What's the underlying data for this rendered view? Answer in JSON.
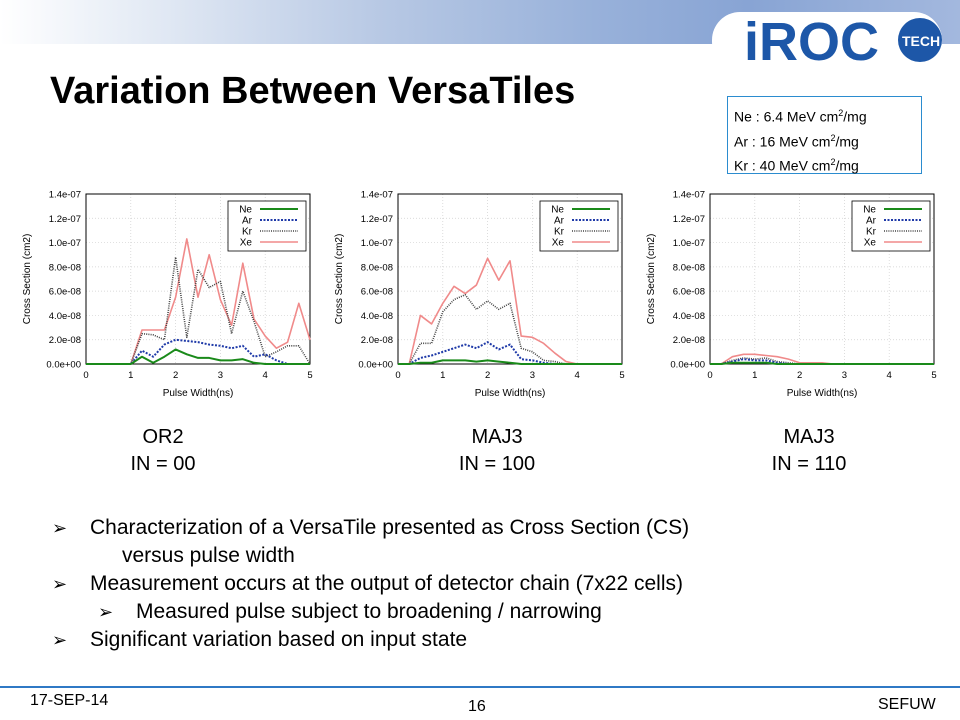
{
  "slide": {
    "title": "Variation Between VersaTiles",
    "logo_text": "iROC",
    "logo_subtext": "TECH",
    "page_number": "16",
    "date": "17-SEP-14",
    "footer_right": "SEFUW"
  },
  "ion_legend": {
    "lines": [
      {
        "text": "Ne : 6.4 MeV cm",
        "sup": "2",
        "tail": "/mg"
      },
      {
        "text": "Ar : 16 MeV cm",
        "sup": "2",
        "tail": "/mg"
      },
      {
        "text": "Kr : 40 MeV cm",
        "sup": "2",
        "tail": "/mg"
      }
    ]
  },
  "captions": [
    {
      "line1": "OR2",
      "line2": "IN = 00"
    },
    {
      "line1": "MAJ3",
      "line2": "IN = 100"
    },
    {
      "line1": "MAJ3",
      "line2": "IN = 110"
    }
  ],
  "bullets": [
    {
      "text": "Characterization of a VersaTile presented as Cross Section (CS)",
      "level": 1
    },
    {
      "text": "versus pulse width",
      "level": 0
    },
    {
      "text": "Measurement occurs at the output of detector chain (7x22 cells)",
      "level": 1
    },
    {
      "text": "Measured pulse subject to broadening / narrowing",
      "level": 2
    },
    {
      "text": "Significant variation based on input state",
      "level": 1
    }
  ],
  "colors": {
    "Ne": "#1a8a1a",
    "Ar": "#1f3aa8",
    "Kr": "#444444",
    "Xe": "#f08a8a",
    "accent": "#2f79c5"
  },
  "chart_data": [
    {
      "type": "line",
      "xlabel": "Pulse Width(ns)",
      "ylabel": "Cross Section (cm2)",
      "xlim": [
        0,
        5
      ],
      "ylim": [
        0,
        1.4e-07
      ],
      "xticks": [
        "0",
        "1",
        "2",
        "3",
        "4",
        "5"
      ],
      "yticks": [
        "0.0e+00",
        "2.0e-08",
        "4.0e-08",
        "6.0e-08",
        "8.0e-08",
        "1.0e-07",
        "1.2e-07",
        "1.4e-07"
      ],
      "grid": true,
      "legend_position": "top-right",
      "x": [
        0,
        0.25,
        0.5,
        0.75,
        1.0,
        1.25,
        1.5,
        1.75,
        2.0,
        2.25,
        2.5,
        2.75,
        3.0,
        3.25,
        3.5,
        3.75,
        4.0,
        4.25,
        4.5,
        4.75,
        5.0
      ],
      "series": [
        {
          "name": "Ne",
          "values": [
            0,
            0,
            0,
            0,
            0,
            6e-09,
            1e-09,
            6e-09,
            1.2e-08,
            8e-09,
            5e-09,
            5e-09,
            3e-09,
            3e-09,
            4e-09,
            1e-09,
            0,
            0,
            0,
            0,
            0
          ]
        },
        {
          "name": "Ar",
          "values": [
            0,
            0,
            0,
            0,
            0,
            1.1e-08,
            6e-09,
            1.6e-08,
            2e-08,
            1.9e-08,
            1.8e-08,
            1.6e-08,
            1.5e-08,
            1.3e-08,
            1.5e-08,
            6e-09,
            8e-09,
            3e-09,
            0,
            0,
            0
          ]
        },
        {
          "name": "Kr",
          "values": [
            0,
            0,
            0,
            0,
            0,
            2.5e-08,
            2.4e-08,
            2e-08,
            8.8e-08,
            2.2e-08,
            7.8e-08,
            6.3e-08,
            6.8e-08,
            2.5e-08,
            6e-08,
            3.5e-08,
            6e-09,
            1e-08,
            1.5e-08,
            1.5e-08,
            0
          ]
        },
        {
          "name": "Xe",
          "values": [
            0,
            0,
            0,
            0,
            0,
            2.8e-08,
            2.8e-08,
            2.8e-08,
            5.5e-08,
            1.03e-07,
            5.5e-08,
            9e-08,
            5.3e-08,
            3.2e-08,
            8.3e-08,
            3.7e-08,
            2.3e-08,
            1.3e-08,
            1.8e-08,
            5e-08,
            2e-08
          ]
        }
      ]
    },
    {
      "type": "line",
      "xlabel": "Pulse Width(ns)",
      "ylabel": "Cross Section (cm2)",
      "xlim": [
        0,
        5
      ],
      "ylim": [
        0,
        1.4e-07
      ],
      "xticks": [
        "0",
        "1",
        "2",
        "3",
        "4",
        "5"
      ],
      "yticks": [
        "0.0e+00",
        "2.0e-08",
        "4.0e-08",
        "6.0e-08",
        "8.0e-08",
        "1.0e-07",
        "1.2e-07",
        "1.4e-07"
      ],
      "grid": true,
      "legend_position": "top-right",
      "x": [
        0,
        0.25,
        0.5,
        0.75,
        1.0,
        1.25,
        1.5,
        1.75,
        2.0,
        2.25,
        2.5,
        2.75,
        3.0,
        3.25,
        3.5,
        3.75,
        4.0,
        4.25,
        4.5,
        4.75,
        5.0
      ],
      "series": [
        {
          "name": "Ne",
          "values": [
            0,
            0,
            1e-09,
            1e-09,
            3e-09,
            3e-09,
            3e-09,
            2e-09,
            3e-09,
            2e-09,
            1e-09,
            0,
            0,
            0,
            0,
            0,
            0,
            0,
            0,
            0,
            0
          ]
        },
        {
          "name": "Ar",
          "values": [
            0,
            0,
            5e-09,
            7e-09,
            1e-08,
            1.3e-08,
            1.6e-08,
            1.3e-08,
            1.8e-08,
            1.2e-08,
            1.6e-08,
            4e-09,
            3e-09,
            1e-09,
            0,
            0,
            0,
            0,
            0,
            0,
            0
          ]
        },
        {
          "name": "Kr",
          "values": [
            0,
            0,
            1.7e-08,
            1.7e-08,
            4.3e-08,
            5.3e-08,
            5.7e-08,
            4.5e-08,
            5.2e-08,
            4.5e-08,
            5e-08,
            1.3e-08,
            1e-08,
            3e-09,
            2e-09,
            0,
            0,
            0,
            0,
            0,
            0
          ]
        },
        {
          "name": "Xe",
          "values": [
            0,
            0,
            4e-08,
            3.3e-08,
            5e-08,
            6.4e-08,
            5.8e-08,
            6.5e-08,
            8.7e-08,
            6.9e-08,
            8.5e-08,
            2.3e-08,
            2.2e-08,
            1.7e-08,
            9e-09,
            2e-09,
            0,
            0,
            0,
            0,
            0
          ]
        }
      ]
    },
    {
      "type": "line",
      "xlabel": "Pulse Width(ns)",
      "ylabel": "Cross Section (cm2)",
      "xlim": [
        0,
        5
      ],
      "ylim": [
        0,
        1.4e-07
      ],
      "xticks": [
        "0",
        "1",
        "2",
        "3",
        "4",
        "5"
      ],
      "yticks": [
        "0.0e+00",
        "2.0e-08",
        "4.0e-08",
        "6.0e-08",
        "8.0e-08",
        "1.0e-07",
        "1.2e-07",
        "1.4e-07"
      ],
      "grid": true,
      "legend_position": "top-right",
      "x": [
        0,
        0.25,
        0.5,
        0.75,
        1.0,
        1.25,
        1.5,
        1.75,
        2.0,
        2.25,
        2.5,
        2.75,
        3.0,
        3.25,
        3.5,
        3.75,
        4.0,
        4.25,
        4.5,
        4.75,
        5.0
      ],
      "series": [
        {
          "name": "Ne",
          "values": [
            0,
            0,
            1e-09,
            1e-09,
            1e-09,
            1e-09,
            0,
            0,
            0,
            0,
            0,
            0,
            0,
            0,
            0,
            0,
            0,
            0,
            0,
            0,
            0
          ]
        },
        {
          "name": "Ar",
          "values": [
            0,
            0,
            2e-09,
            4e-09,
            3e-09,
            3e-09,
            1e-09,
            0,
            0,
            0,
            0,
            0,
            0,
            0,
            0,
            0,
            0,
            0,
            0,
            0,
            0
          ]
        },
        {
          "name": "Kr",
          "values": [
            0,
            0,
            3e-09,
            5e-09,
            4e-09,
            5e-09,
            2e-09,
            1e-09,
            0,
            0,
            0,
            0,
            0,
            0,
            0,
            0,
            0,
            0,
            0,
            0,
            0
          ]
        },
        {
          "name": "Xe",
          "values": [
            0,
            0,
            6e-09,
            8e-09,
            8e-09,
            7e-09,
            6e-09,
            4e-09,
            1e-09,
            1e-09,
            1e-09,
            0,
            0,
            0,
            0,
            0,
            0,
            0,
            0,
            0,
            0
          ]
        }
      ]
    }
  ]
}
